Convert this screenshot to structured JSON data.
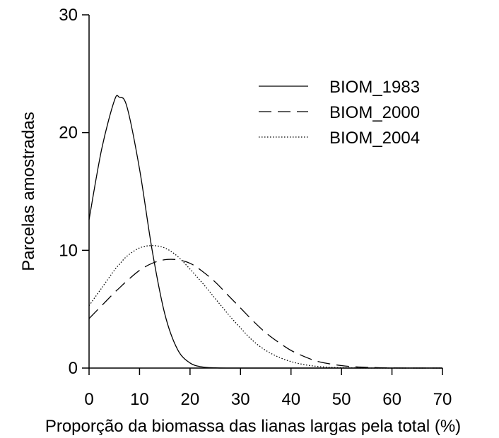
{
  "chart_data": {
    "type": "line",
    "title": "",
    "xlabel": "Proporção da biomassa das lianas largas pela total (%)",
    "ylabel": "Parcelas amostradas",
    "xlim": [
      0,
      70
    ],
    "ylim": [
      0,
      30
    ],
    "xticks": [
      0,
      10,
      20,
      30,
      40,
      50,
      60,
      70
    ],
    "yticks": [
      0,
      10,
      20,
      30
    ],
    "grid": false,
    "legend_position": "top-right",
    "x": [
      0,
      2.5,
      5,
      6,
      7.5,
      10,
      12.5,
      15,
      17.5,
      20,
      22.5,
      25,
      27.5,
      30,
      32.5,
      35,
      37.5,
      40,
      42.5,
      45,
      47.5,
      50,
      52.5,
      55,
      57.5,
      60,
      62.5,
      65,
      67.5,
      70
    ],
    "series": [
      {
        "name": "BIOM_1983",
        "line_style": "solid",
        "values": [
          12.6,
          18.6,
          22.7,
          23.0,
          22.2,
          16.9,
          10.0,
          4.6,
          1.6,
          0.43,
          0.09,
          0.02,
          0.0,
          0.0,
          0.0,
          0.0,
          0.0,
          0.0,
          0.0,
          0.0,
          0.0,
          0.0,
          0.0,
          0.0,
          0.0,
          0.0,
          0.0,
          0.0,
          0.0,
          0.0
        ]
      },
      {
        "name": "BIOM_2000",
        "line_style": "dashed",
        "values": [
          4.2,
          5.3,
          6.4,
          6.8,
          7.4,
          8.3,
          8.9,
          9.2,
          9.2,
          8.9,
          8.2,
          7.3,
          6.2,
          5.1,
          4.0,
          3.0,
          2.2,
          1.5,
          1.0,
          0.6,
          0.37,
          0.21,
          0.11,
          0.06,
          0.03,
          0.01,
          0.0,
          0.0,
          0.0,
          0.0
        ]
      },
      {
        "name": "BIOM_2004",
        "line_style": "dotted",
        "values": [
          5.3,
          6.8,
          8.3,
          8.8,
          9.5,
          10.2,
          10.4,
          10.2,
          9.5,
          8.4,
          7.2,
          5.9,
          4.6,
          3.4,
          2.3,
          1.5,
          0.94,
          0.55,
          0.3,
          0.15,
          0.07,
          0.03,
          0.01,
          0.0,
          0.0,
          0.0,
          0.0,
          0.0,
          0.0,
          0.0
        ]
      }
    ]
  }
}
